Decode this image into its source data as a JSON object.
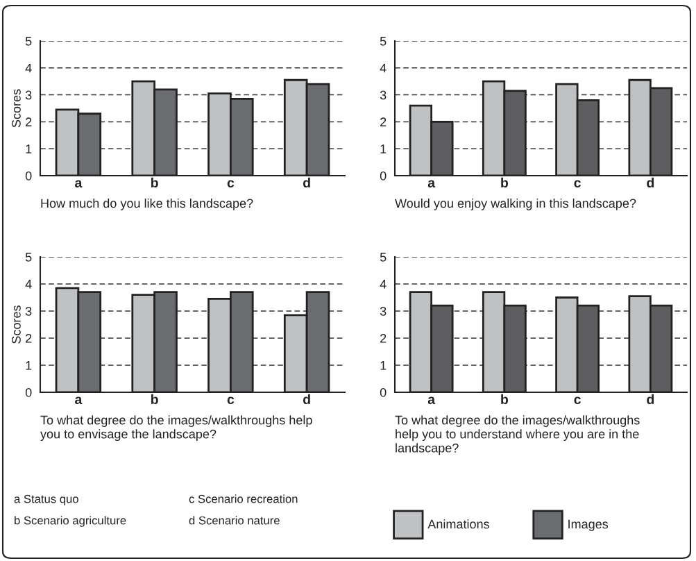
{
  "chart_data": [
    {
      "type": "bar",
      "xlabel": "How much do you like this landscape?",
      "ylabel": "Scores",
      "categories": [
        "a",
        "b",
        "c",
        "d"
      ],
      "series": [
        {
          "name": "Animations",
          "color": "#c0c1c3",
          "values": [
            2.45,
            3.5,
            3.05,
            3.55
          ]
        },
        {
          "name": "Images",
          "color": "#6b6c70",
          "values": [
            2.3,
            3.2,
            2.85,
            3.4
          ]
        }
      ],
      "ylim": [
        0,
        5
      ],
      "yticks": [
        0,
        1,
        2,
        3,
        4,
        5
      ],
      "grid": "y",
      "legend": "bottom",
      "annotations": [
        "a Status quo",
        "b Scenario agriculture",
        "c Scenario recreation",
        "d Scenario nature"
      ]
    },
    {
      "type": "bar",
      "xlabel": "Would you enjoy walking in this landscape?",
      "categories": [
        "a",
        "b",
        "c",
        "d"
      ],
      "series": [
        {
          "color": "#c0c1c3",
          "values": [
            2.6,
            3.5,
            3.4,
            3.55
          ]
        },
        {
          "color": "#5e5e60",
          "values": [
            2.0,
            3.15,
            2.8,
            3.25
          ]
        }
      ],
      "ylim": [
        0,
        5
      ],
      "yticks": [
        0,
        1,
        2,
        3,
        4,
        5
      ],
      "grid": "y"
    },
    {
      "type": "bar",
      "xlabel": "To what degree do the images/walkthroughs help you to envisage the landscape?",
      "ylabel": "Scores",
      "categories": [
        "a",
        "b",
        "c",
        "d"
      ],
      "series": [
        {
          "color": "#c0c1c3",
          "values": [
            3.85,
            3.6,
            3.45,
            2.85
          ]
        },
        {
          "color": "#6b6c70",
          "values": [
            3.7,
            3.7,
            3.7,
            3.7
          ]
        }
      ],
      "ylim": [
        0,
        5
      ],
      "yticks": [
        0,
        1,
        2,
        3,
        4,
        5
      ],
      "grid": "y"
    },
    {
      "type": "bar",
      "xlabel": "To what degree do the images/walkthroughs help you to understand where you are in the landscape?",
      "categories": [
        "a",
        "b",
        "c",
        "d"
      ],
      "series": [
        {
          "color": "#c0c1c3",
          "values": [
            3.7,
            3.7,
            3.5,
            3.55
          ]
        },
        {
          "color": "#5e5e60",
          "values": [
            3.2,
            3.2,
            3.2,
            3.2
          ]
        }
      ],
      "ylim": [
        0,
        5
      ],
      "yticks": [
        0,
        1,
        2,
        3,
        4,
        5
      ],
      "grid": "y"
    }
  ]
}
